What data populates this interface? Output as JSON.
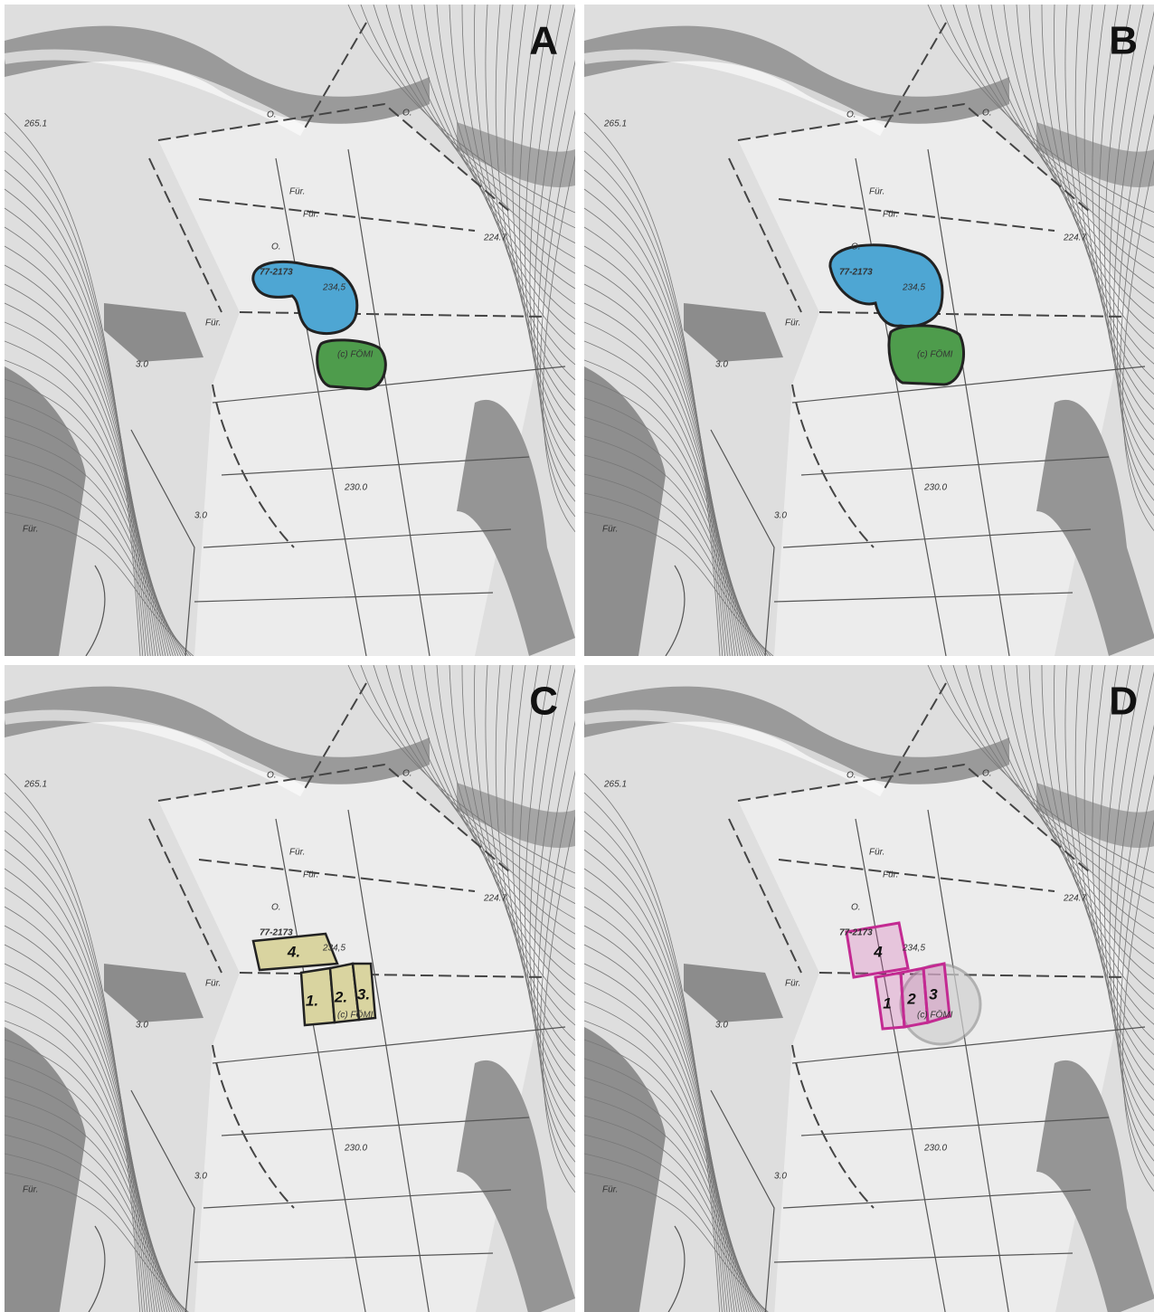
{
  "panels": [
    {
      "letter": "A"
    },
    {
      "letter": "B"
    },
    {
      "letter": "C",
      "plots": [
        "1.",
        "2.",
        "3.",
        "4."
      ]
    },
    {
      "letter": "D",
      "plots": [
        "1",
        "2",
        "3",
        "4"
      ]
    }
  ],
  "map_labels": [
    "77-2173",
    "234,5",
    "(c) FÖMI",
    "224.7",
    "230.0",
    "Für.",
    "O.",
    "265.1",
    "3.0"
  ]
}
